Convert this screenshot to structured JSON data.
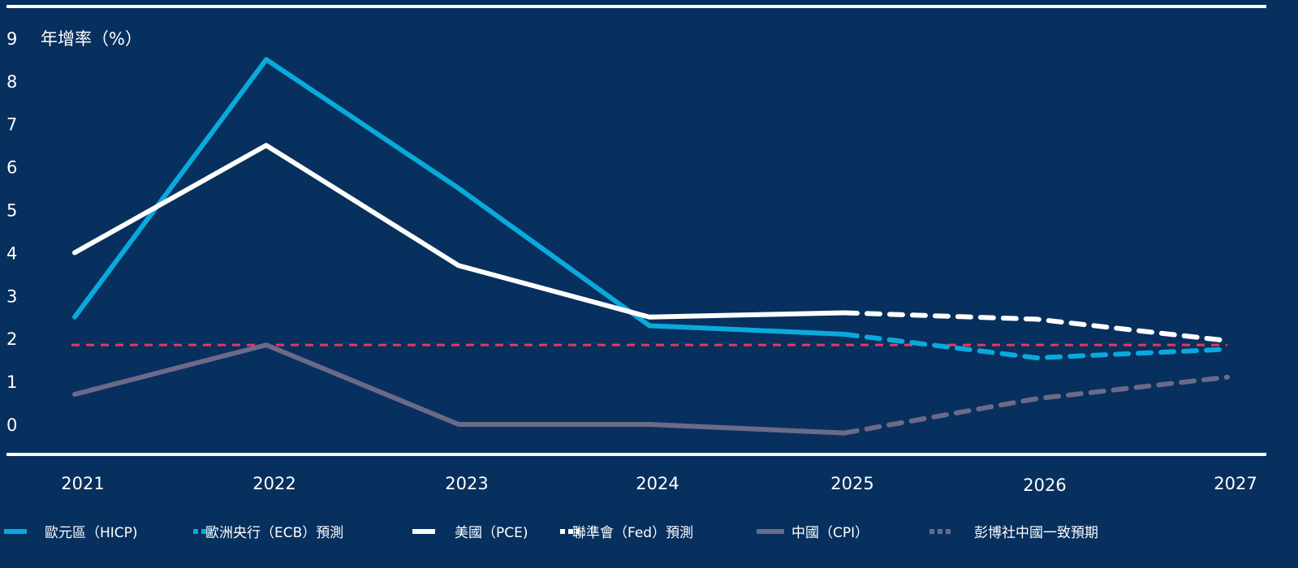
{
  "chart_data": {
    "type": "line",
    "ylabel": "年增率（%）",
    "ylim": [
      0,
      9
    ],
    "yticks": [
      9,
      8,
      7,
      6,
      5,
      4,
      3,
      2,
      1,
      0
    ],
    "categories": [
      "2021",
      "2022",
      "2023",
      "2024",
      "2025",
      "2026",
      "2027"
    ],
    "reference_line": {
      "value": 1.85,
      "color": "#e8385a",
      "style": "dashed"
    },
    "series": [
      {
        "name": "歐元區（HICP)",
        "color": "#0aa9dc",
        "style": "solid",
        "x": [
          "2021",
          "2022",
          "2023",
          "2024",
          "2025"
        ],
        "values": [
          2.5,
          8.5,
          5.5,
          2.3,
          2.1
        ]
      },
      {
        "name": "歐洲央行（ECB）預測",
        "color": "#0aa9dc",
        "style": "dashed",
        "x": [
          "2025",
          "2026",
          "2027"
        ],
        "values": [
          2.1,
          1.55,
          1.75
        ]
      },
      {
        "name": "美國（PCE)",
        "color": "#ffffff",
        "style": "solid",
        "x": [
          "2021",
          "2022",
          "2023",
          "2024",
          "2025"
        ],
        "values": [
          4.0,
          6.5,
          3.7,
          2.5,
          2.6
        ]
      },
      {
        "name": "聯準會（Fed）預測",
        "color": "#ffffff",
        "style": "dashed",
        "x": [
          "2025",
          "2026",
          "2027"
        ],
        "values": [
          2.6,
          2.45,
          1.95
        ]
      },
      {
        "name": "中國（CPI）",
        "color": "#6b6a88",
        "style": "solid",
        "x": [
          "2021",
          "2022",
          "2023",
          "2024",
          "2025"
        ],
        "values": [
          0.7,
          1.85,
          0.0,
          0.0,
          -0.2
        ]
      },
      {
        "name": "彭博社中國一致預期",
        "color": "#6b6a88",
        "style": "dashed",
        "x": [
          "2025",
          "2026",
          "2027"
        ],
        "values": [
          -0.2,
          0.6,
          1.1
        ]
      }
    ],
    "grid": false,
    "legend": "bottom"
  }
}
